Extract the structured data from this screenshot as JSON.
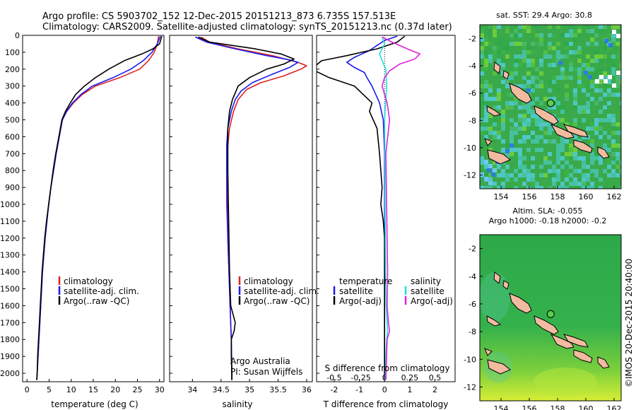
{
  "header": {
    "line1": "Argo profile: CS 5903702_152 12-Dec-2015 20151213_873 6.735S 157.513E",
    "line2": "Climatology: CARS2009. Satellite-adjusted climatology: synTS_20151213.nc (0.37d later)"
  },
  "colors": {
    "climatology": "#dd2222",
    "satellite": "#1a1aee",
    "argo": "#000000",
    "salinity_diff": "#dd22dd",
    "sat_salinity": "#22dddd"
  },
  "panels": {
    "temperature": {
      "xlabel": "temperature (deg C)",
      "legend": [
        "climatology",
        "satellite-adj. clim.",
        "Argo(..raw -QC)"
      ]
    },
    "salinity": {
      "xlabel": "salinity",
      "legend": [
        "climatology",
        "satellite-adj. clim.",
        "Argo(..raw -QC)"
      ],
      "note1": "Argo Australia",
      "note2": "PI: Susan Wijffels"
    },
    "difference": {
      "xlabel_top": "S difference from climatology",
      "xlabel_bottom": "T difference from climatology",
      "legend_temp_title": "temperature",
      "legend_sal_title": "salinity",
      "legend_temp": [
        "satellite",
        "Argo(-adj)"
      ],
      "legend_sal": [
        "satellite",
        "Argo(-adj)"
      ]
    },
    "map_sst": {
      "title": "sat. SST: 29.4  Argo: 30.8"
    },
    "map_sla": {
      "title1": "Altim. SLA: -0.055",
      "title2": "Argo h1000: -0.18 h2000: -0.2"
    }
  },
  "credit": "©IMOS 20-Dec-2015 20:40:00",
  "chart_data": [
    {
      "type": "line",
      "title": "",
      "xlabel": "temperature (deg C)",
      "ylabel": "",
      "xlim": [
        -1,
        31
      ],
      "ylim": [
        2050,
        0
      ],
      "xticks": [
        "0",
        "5",
        "10",
        "15",
        "20",
        "25",
        "30"
      ],
      "yticks": [
        "0",
        "100",
        "200",
        "300",
        "400",
        "500",
        "600",
        "700",
        "800",
        "900",
        "1000",
        "1100",
        "1200",
        "1300",
        "1400",
        "1500",
        "1600",
        "1700",
        "1800",
        "1900",
        "2000"
      ],
      "series": [
        {
          "name": "climatology",
          "color": "#dd2222",
          "points": [
            [
              29.8,
              5
            ],
            [
              29.5,
              50
            ],
            [
              28.8,
              100
            ],
            [
              27.5,
              150
            ],
            [
              25.5,
              200
            ],
            [
              21,
              250
            ],
            [
              15.5,
              300
            ],
            [
              12.5,
              350
            ],
            [
              10.5,
              400
            ],
            [
              9,
              450
            ],
            [
              8,
              500
            ],
            [
              7.3,
              600
            ],
            [
              6.6,
              700
            ],
            [
              6,
              800
            ],
            [
              5.4,
              900
            ],
            [
              4.9,
              1000
            ],
            [
              4.5,
              1100
            ],
            [
              4.1,
              1200
            ],
            [
              3.8,
              1300
            ],
            [
              3.5,
              1400
            ],
            [
              3.3,
              1500
            ],
            [
              3.1,
              1600
            ],
            [
              2.9,
              1700
            ],
            [
              2.7,
              1800
            ],
            [
              2.5,
              1900
            ],
            [
              2.3,
              2000
            ],
            [
              2.2,
              2040
            ]
          ]
        },
        {
          "name": "satellite-adj. clim.",
          "color": "#1a1aee",
          "points": [
            [
              30.2,
              5
            ],
            [
              29.5,
              50
            ],
            [
              28.3,
              100
            ],
            [
              26.3,
              150
            ],
            [
              23.5,
              200
            ],
            [
              19.5,
              250
            ],
            [
              14.8,
              300
            ],
            [
              12.2,
              350
            ],
            [
              10.3,
              400
            ],
            [
              8.9,
              450
            ],
            [
              8,
              500
            ],
            [
              7.3,
              600
            ],
            [
              6.6,
              700
            ],
            [
              6,
              800
            ],
            [
              5.4,
              900
            ],
            [
              4.9,
              1000
            ],
            [
              4.5,
              1100
            ],
            [
              4.1,
              1200
            ],
            [
              3.8,
              1300
            ],
            [
              3.5,
              1400
            ],
            [
              3.3,
              1500
            ],
            [
              3.1,
              1600
            ],
            [
              2.9,
              1700
            ],
            [
              2.7,
              1800
            ],
            [
              2.5,
              1900
            ],
            [
              2.3,
              2000
            ],
            [
              2.2,
              2040
            ]
          ]
        },
        {
          "name": "Argo(..raw -QC)",
          "color": "#000000",
          "points": [
            [
              30.5,
              5
            ],
            [
              30,
              50
            ],
            [
              28.5,
              80
            ],
            [
              26,
              110
            ],
            [
              22,
              150
            ],
            [
              18.5,
              200
            ],
            [
              15.5,
              250
            ],
            [
              13,
              300
            ],
            [
              11,
              350
            ],
            [
              9.8,
              400
            ],
            [
              8.7,
              450
            ],
            [
              7.9,
              500
            ],
            [
              7.2,
              600
            ],
            [
              6.5,
              700
            ],
            [
              5.9,
              800
            ],
            [
              5.4,
              900
            ],
            [
              4.9,
              1000
            ],
            [
              4.4,
              1100
            ],
            [
              4,
              1200
            ],
            [
              3.7,
              1300
            ],
            [
              3.4,
              1400
            ],
            [
              3.2,
              1500
            ],
            [
              3,
              1600
            ],
            [
              2.8,
              1700
            ],
            [
              2.6,
              1800
            ],
            [
              2.4,
              1900
            ],
            [
              2.3,
              2000
            ],
            [
              2.2,
              2040
            ]
          ]
        }
      ]
    },
    {
      "type": "line",
      "title": "",
      "xlabel": "salinity",
      "ylabel": "",
      "xlim": [
        33.6,
        36.1
      ],
      "ylim": [
        2050,
        0
      ],
      "xticks": [
        "34",
        "34.5",
        "35",
        "35.5",
        "36"
      ],
      "series": [
        {
          "name": "climatology",
          "color": "#dd2222",
          "points": [
            [
              34.15,
              10
            ],
            [
              34.3,
              40
            ],
            [
              34.8,
              80
            ],
            [
              35.4,
              120
            ],
            [
              35.85,
              160
            ],
            [
              36.0,
              180
            ],
            [
              35.9,
              200
            ],
            [
              35.6,
              240
            ],
            [
              35.2,
              280
            ],
            [
              34.95,
              320
            ],
            [
              34.8,
              380
            ],
            [
              34.72,
              450
            ],
            [
              34.65,
              550
            ],
            [
              34.62,
              650
            ],
            [
              34.6,
              800
            ],
            [
              34.6,
              1000
            ],
            [
              34.62,
              1200
            ],
            [
              34.64,
              1400
            ],
            [
              34.66,
              1600
            ],
            [
              34.68,
              1800
            ],
            [
              34.69,
              2000
            ],
            [
              34.69,
              2040
            ]
          ]
        },
        {
          "name": "satellite-adj. clim.",
          "color": "#1a1aee",
          "points": [
            [
              34.05,
              10
            ],
            [
              34.25,
              40
            ],
            [
              34.75,
              80
            ],
            [
              35.3,
              120
            ],
            [
              35.7,
              145
            ],
            [
              35.85,
              160
            ],
            [
              35.7,
              190
            ],
            [
              35.4,
              230
            ],
            [
              35.05,
              280
            ],
            [
              34.85,
              330
            ],
            [
              34.75,
              380
            ],
            [
              34.68,
              450
            ],
            [
              34.62,
              550
            ],
            [
              34.6,
              650
            ],
            [
              34.6,
              800
            ],
            [
              34.61,
              1000
            ],
            [
              34.62,
              1200
            ],
            [
              34.64,
              1400
            ],
            [
              34.66,
              1600
            ],
            [
              34.68,
              1800
            ],
            [
              34.69,
              2000
            ],
            [
              34.69,
              2040
            ]
          ]
        },
        {
          "name": "Argo(..raw -QC)",
          "color": "#000000",
          "points": [
            [
              34.1,
              10
            ],
            [
              34.3,
              40
            ],
            [
              35.1,
              80
            ],
            [
              35.55,
              110
            ],
            [
              35.78,
              140
            ],
            [
              35.6,
              170
            ],
            [
              35.3,
              200
            ],
            [
              35.0,
              250
            ],
            [
              34.8,
              300
            ],
            [
              34.7,
              380
            ],
            [
              34.65,
              450
            ],
            [
              34.62,
              550
            ],
            [
              34.62,
              650
            ],
            [
              34.62,
              800
            ],
            [
              34.63,
              1000
            ],
            [
              34.64,
              1200
            ],
            [
              34.65,
              1400
            ],
            [
              34.67,
              1600
            ],
            [
              34.75,
              1700
            ],
            [
              34.73,
              1750
            ],
            [
              34.68,
              1800
            ],
            [
              34.68,
              1900
            ],
            [
              34.69,
              2000
            ],
            [
              34.69,
              2040
            ]
          ]
        }
      ]
    },
    {
      "type": "line",
      "title": "",
      "xlabel": "T difference from climatology",
      "xlabel_top": "S difference from climatology",
      "ylabel": "",
      "xlim": [
        -2.7,
        2.8
      ],
      "ylim": [
        2050,
        0
      ],
      "xticks": [
        "-2",
        "-1",
        "0",
        "1",
        "2"
      ],
      "xticks_top": [
        "-0.5",
        "-0.25",
        "0",
        "0.25",
        "0.5"
      ],
      "series": [
        {
          "name": "temperature satellite",
          "color": "#1a1aee",
          "points": [
            [
              0.5,
              5
            ],
            [
              0,
              30
            ],
            [
              -0.3,
              60
            ],
            [
              -0.6,
              90
            ],
            [
              -1.2,
              130
            ],
            [
              -1.5,
              160
            ],
            [
              -1.2,
              190
            ],
            [
              -0.8,
              220
            ],
            [
              -0.7,
              250
            ],
            [
              -0.5,
              300
            ],
            [
              -0.2,
              400
            ],
            [
              -0.05,
              500
            ],
            [
              0,
              700
            ],
            [
              0,
              1000
            ],
            [
              0,
              1500
            ],
            [
              0,
              2040
            ]
          ]
        },
        {
          "name": "temperature Argo(-adj)",
          "color": "#000000",
          "points": [
            [
              0.8,
              5
            ],
            [
              0.5,
              40
            ],
            [
              -0.3,
              80
            ],
            [
              -1.5,
              120
            ],
            [
              -2.5,
              150
            ],
            [
              -2.9,
              200
            ],
            [
              -2.2,
              250
            ],
            [
              -1.2,
              300
            ],
            [
              -0.5,
              400
            ],
            [
              -0.6,
              450
            ],
            [
              -0.3,
              550
            ],
            [
              -0.2,
              700
            ],
            [
              -0.1,
              900
            ],
            [
              -0.15,
              1000
            ],
            [
              -0.05,
              1100
            ],
            [
              0,
              1200
            ],
            [
              0,
              1500
            ],
            [
              0,
              2040
            ]
          ]
        },
        {
          "name": "salinity satellite",
          "color": "#22dddd",
          "points": [
            [
              -0.1,
              10
            ],
            [
              0,
              50
            ],
            [
              -0.1,
              80
            ],
            [
              -0.2,
              110
            ],
            [
              -0.1,
              150
            ],
            [
              0.05,
              200
            ],
            [
              0.08,
              300
            ],
            [
              0,
              500
            ],
            [
              0.02,
              800
            ],
            [
              0.02,
              1000
            ],
            [
              0.03,
              1200
            ],
            [
              0.04,
              1400
            ],
            [
              0.06,
              1600
            ],
            [
              0.1,
              1700
            ],
            [
              0.12,
              1750
            ],
            [
              0.08,
              1800
            ],
            [
              0.05,
              1900
            ],
            [
              0.03,
              2040
            ]
          ]
        },
        {
          "name": "salinity Argo(-adj)",
          "color": "#dd22dd",
          "points": [
            [
              -0.1,
              10
            ],
            [
              0.3,
              40
            ],
            [
              0.9,
              80
            ],
            [
              1.4,
              110
            ],
            [
              1.2,
              140
            ],
            [
              0.6,
              170
            ],
            [
              0.2,
              210
            ],
            [
              0,
              250
            ],
            [
              -0.1,
              300
            ],
            [
              0.1,
              400
            ],
            [
              0.2,
              500
            ],
            [
              0.05,
              700
            ],
            [
              0.08,
              1000
            ],
            [
              0.1,
              1200
            ],
            [
              0.12,
              1400
            ],
            [
              0.1,
              1600
            ],
            [
              0.15,
              1700
            ],
            [
              0.2,
              1750
            ],
            [
              0.1,
              1800
            ],
            [
              0.05,
              2040
            ]
          ]
        }
      ]
    },
    {
      "type": "heatmap",
      "title": "sat. SST: 29.4  Argo: 30.8",
      "xlim": [
        152.5,
        162.5
      ],
      "ylim": [
        -13,
        -1
      ],
      "xticks": [
        "154",
        "156",
        "158",
        "160",
        "162"
      ],
      "yticks": [
        "-2",
        "-4",
        "-6",
        "-8",
        "-10",
        "-12"
      ],
      "profile_location": {
        "lon": 157.513,
        "lat": -6.735
      }
    },
    {
      "type": "heatmap",
      "title": "Altim. SLA: -0.055  Argo h1000: -0.18 h2000: -0.2",
      "xlim": [
        152.5,
        162.5
      ],
      "ylim": [
        -13,
        -1
      ],
      "xticks": [
        "154",
        "156",
        "158",
        "160",
        "162"
      ],
      "yticks": [
        "-2",
        "-4",
        "-6",
        "-8",
        "-10",
        "-12"
      ],
      "profile_location": {
        "lon": 157.513,
        "lat": -6.735
      }
    }
  ]
}
